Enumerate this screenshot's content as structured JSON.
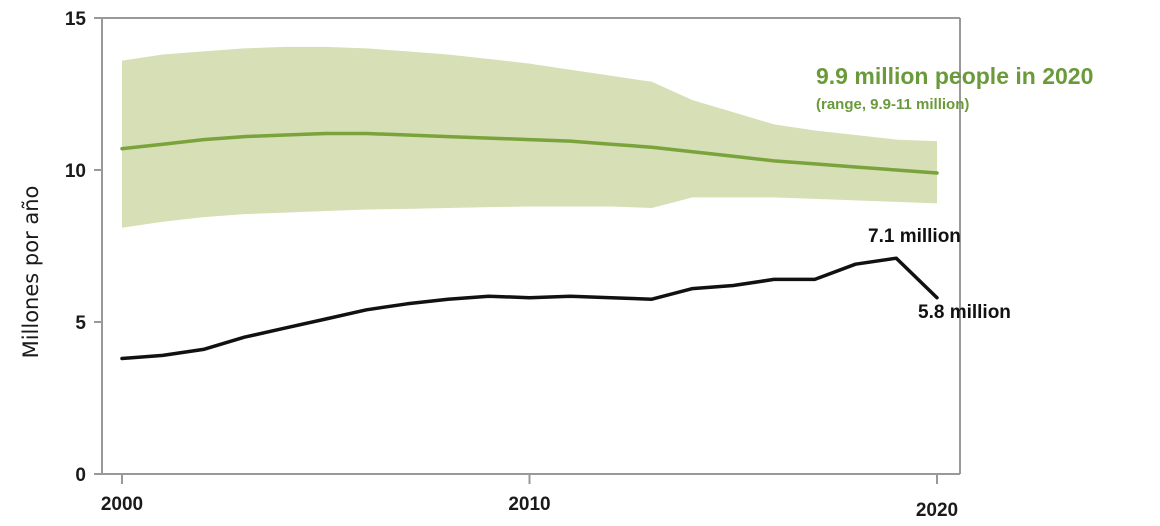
{
  "chart_data": {
    "type": "line",
    "title": "",
    "xlabel": "",
    "ylabel": "Millones por año",
    "xlim": [
      2000,
      2020
    ],
    "ylim": [
      0,
      15
    ],
    "x_ticks": [
      "2000",
      "2010",
      "2020"
    ],
    "y_ticks": [
      "0",
      "5",
      "10",
      "15"
    ],
    "grid": false,
    "colors": {
      "band": "#d6dfb6",
      "estimate": "#7aa33c",
      "reported": "#111111",
      "axis": "#999999",
      "annotation_green": "#6a9a3a"
    },
    "series": [
      {
        "key": "estimate",
        "x": [
          2000,
          2001,
          2002,
          2003,
          2004,
          2005,
          2006,
          2007,
          2008,
          2009,
          2010,
          2011,
          2012,
          2013,
          2014,
          2015,
          2016,
          2017,
          2018,
          2019,
          2020
        ],
        "values": [
          10.7,
          10.85,
          11.0,
          11.1,
          11.15,
          11.2,
          11.2,
          11.15,
          11.1,
          11.05,
          11.0,
          10.95,
          10.85,
          10.75,
          10.6,
          10.45,
          10.3,
          10.2,
          10.1,
          10.0,
          9.9
        ]
      },
      {
        "key": "reported",
        "x": [
          2000,
          2001,
          2002,
          2003,
          2004,
          2005,
          2006,
          2007,
          2008,
          2009,
          2010,
          2011,
          2012,
          2013,
          2014,
          2015,
          2016,
          2017,
          2018,
          2019,
          2020
        ],
        "values": [
          3.8,
          3.9,
          4.1,
          4.5,
          4.8,
          5.1,
          5.4,
          5.6,
          5.75,
          5.85,
          5.8,
          5.85,
          5.8,
          5.75,
          6.1,
          6.2,
          6.4,
          6.4,
          6.9,
          7.1,
          5.8
        ]
      }
    ],
    "uncertainty_band": {
      "x": [
        2000,
        2001,
        2002,
        2003,
        2004,
        2005,
        2006,
        2007,
        2008,
        2009,
        2010,
        2011,
        2012,
        2013,
        2014,
        2015,
        2016,
        2017,
        2018,
        2019,
        2020
      ],
      "lower": [
        8.1,
        8.3,
        8.45,
        8.55,
        8.6,
        8.65,
        8.7,
        8.72,
        8.75,
        8.78,
        8.8,
        8.8,
        8.8,
        8.75,
        9.1,
        9.1,
        9.1,
        9.05,
        9.0,
        8.95,
        8.9
      ],
      "upper": [
        13.6,
        13.8,
        13.9,
        14.0,
        14.05,
        14.05,
        14.0,
        13.9,
        13.8,
        13.65,
        13.5,
        13.3,
        13.1,
        12.9,
        12.3,
        11.9,
        11.5,
        11.3,
        11.15,
        11.0,
        10.95
      ]
    },
    "annotations": {
      "estimate_main": "9.9 million people in 2020",
      "estimate_range": "(range, 9.9-11 million)",
      "reported_peak": "7.1 million",
      "reported_2020": "5.8 million"
    }
  }
}
